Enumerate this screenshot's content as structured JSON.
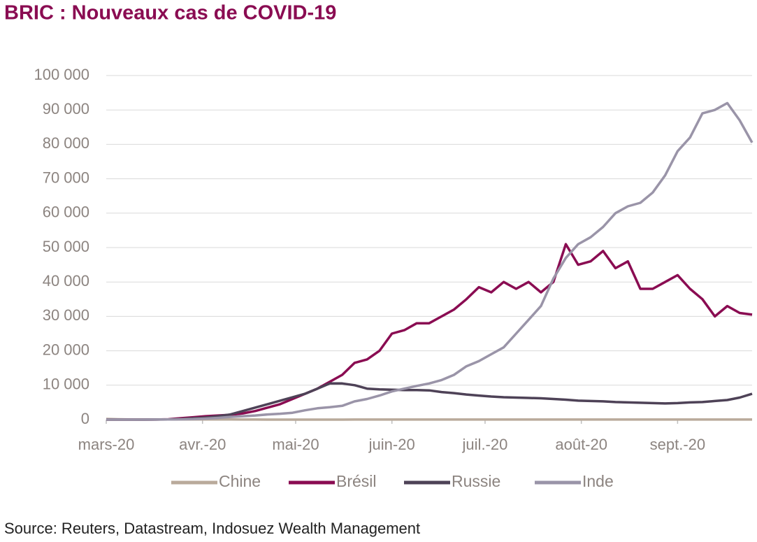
{
  "chart_data": {
    "type": "line",
    "title": "BRIC : Nouveaux cas de COVID-19",
    "source": "Source: Reuters, Datastream, Indosuez Wealth Management",
    "x": [
      0,
      4,
      8,
      12,
      16,
      20,
      24,
      28,
      32,
      36,
      40,
      44,
      48,
      52,
      56,
      60,
      64,
      68,
      72,
      76,
      80,
      84,
      88,
      92,
      96,
      100,
      104,
      108,
      112,
      116,
      120,
      124,
      128,
      132,
      136,
      140,
      144,
      148,
      152,
      156,
      160,
      164,
      168,
      172,
      176,
      180,
      184,
      188,
      192,
      196,
      200,
      204,
      208
    ],
    "xlim": [
      0,
      208
    ],
    "xticks": [
      {
        "value": 0,
        "label": "mars-20"
      },
      {
        "value": 31,
        "label": "avr.-20"
      },
      {
        "value": 61,
        "label": "mai-20"
      },
      {
        "value": 92,
        "label": "juin-20"
      },
      {
        "value": 122,
        "label": "juil.-20"
      },
      {
        "value": 153,
        "label": "août-20"
      },
      {
        "value": 184,
        "label": "sept.-20"
      }
    ],
    "ylim": [
      0,
      100000
    ],
    "yticks": [
      0,
      {
        "value": 10000,
        "label": "10 000"
      },
      {
        "value": 20000,
        "label": "20 000"
      },
      {
        "value": 30000,
        "label": "30 000"
      },
      {
        "value": 40000,
        "label": "40 000"
      },
      {
        "value": 50000,
        "label": "50 000"
      },
      {
        "value": 60000,
        "label": "60 000"
      },
      {
        "value": 70000,
        "label": "70 000"
      },
      {
        "value": 80000,
        "label": "80 000"
      },
      {
        "value": 90000,
        "label": "90 000"
      },
      {
        "value": 100000,
        "label": "100 000"
      }
    ],
    "grid": true,
    "legend": "bottom",
    "series": [
      {
        "name": "Chine",
        "color": "#b9aa9b",
        "values": [
          200,
          100,
          50,
          30,
          50,
          50,
          50,
          50,
          80,
          50,
          40,
          30,
          20,
          10,
          10,
          10,
          10,
          10,
          10,
          10,
          20,
          20,
          20,
          20,
          20,
          20,
          20,
          20,
          20,
          20,
          20,
          20,
          20,
          20,
          20,
          20,
          20,
          20,
          20,
          20,
          20,
          20,
          20,
          20,
          20,
          20,
          20,
          20,
          20,
          20,
          20,
          20,
          20
        ]
      },
      {
        "name": "Brésil",
        "color": "#8a0c52",
        "values": [
          0,
          0,
          0,
          0,
          20,
          100,
          400,
          700,
          1000,
          1200,
          1400,
          1800,
          2500,
          3500,
          4500,
          6000,
          7500,
          9000,
          11000,
          13000,
          16500,
          17500,
          20000,
          25000,
          26000,
          28000,
          28000,
          30000,
          32000,
          35000,
          38500,
          37000,
          40000,
          38000,
          40000,
          37000,
          40000,
          51000,
          45000,
          46000,
          49000,
          44000,
          46000,
          38000,
          38000,
          40000,
          42000,
          38000,
          35000,
          30000,
          33000,
          31000,
          30500
        ]
      },
      {
        "name": "Russie",
        "color": "#4e4257",
        "values": [
          0,
          0,
          0,
          0,
          20,
          60,
          150,
          400,
          600,
          1000,
          1500,
          2500,
          3500,
          4500,
          5500,
          6500,
          7500,
          9000,
          10500,
          10500,
          10000,
          9000,
          8800,
          8700,
          8600,
          8600,
          8500,
          8000,
          7700,
          7300,
          7000,
          6700,
          6500,
          6400,
          6300,
          6200,
          6000,
          5800,
          5500,
          5400,
          5300,
          5100,
          5000,
          4900,
          4800,
          4700,
          4800,
          5000,
          5100,
          5400,
          5700,
          6400,
          7500
        ]
      },
      {
        "name": "Inde",
        "color": "#9a94a8",
        "values": [
          0,
          0,
          0,
          10,
          20,
          50,
          80,
          150,
          300,
          500,
          800,
          1000,
          1200,
          1500,
          1700,
          2000,
          2700,
          3300,
          3600,
          4000,
          5300,
          6000,
          7000,
          8200,
          9000,
          9800,
          10500,
          11500,
          13000,
          15500,
          17000,
          19000,
          21000,
          25000,
          29000,
          33000,
          41000,
          47000,
          51000,
          53000,
          56000,
          60000,
          62000,
          63000,
          66000,
          71000,
          78000,
          82000,
          89000,
          90000,
          92000,
          87000,
          80500
        ]
      }
    ]
  }
}
